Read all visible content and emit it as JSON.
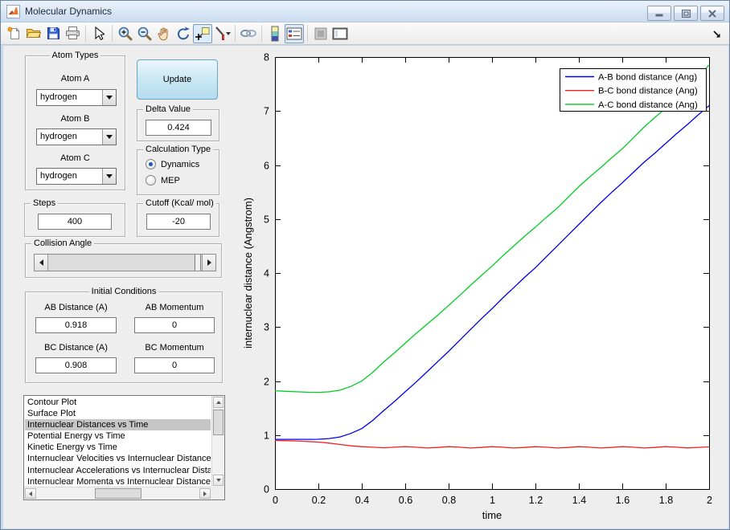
{
  "window": {
    "title": "Molecular Dynamics"
  },
  "toolbar": {
    "icons": [
      "new-figure",
      "open-file",
      "save-figure",
      "print-figure",
      "edit-plot-cursor",
      "zoom-in",
      "zoom-out",
      "pan",
      "rotate-3d",
      "data-cursor",
      "brush-data",
      "link-plots",
      "insert-colorbar",
      "insert-legend",
      "hide-plot-tools",
      "show-plot-tools-dock"
    ],
    "pressed": [
      "data-cursor",
      "insert-legend"
    ]
  },
  "controls": {
    "atom_types": {
      "title": "Atom Types",
      "atoms": [
        {
          "label": "Atom A",
          "value": "hydrogen"
        },
        {
          "label": "Atom B",
          "value": "hydrogen"
        },
        {
          "label": "Atom C",
          "value": "hydrogen"
        }
      ]
    },
    "update_button": "Update",
    "delta": {
      "title": "Delta Value",
      "value": "0.424"
    },
    "calculation_type": {
      "title": "Calculation Type",
      "options": [
        {
          "label": "Dynamics",
          "selected": true
        },
        {
          "label": "MEP",
          "selected": false
        }
      ]
    },
    "steps": {
      "title": "Steps",
      "value": "400"
    },
    "cutoff": {
      "title": "Cutoff (Kcal/ mol)",
      "value": "-20"
    },
    "collision_angle": {
      "title": "Collision Angle"
    },
    "initial_conditions": {
      "title": "Initial Conditions",
      "fields": [
        {
          "label": "AB Distance (A)",
          "value": "0.918"
        },
        {
          "label": "AB Momentum",
          "value": "0"
        },
        {
          "label": "BC Distance (A)",
          "value": "0.908"
        },
        {
          "label": "BC Momentum",
          "value": "0"
        }
      ]
    },
    "plot_list": {
      "items": [
        "Contour Plot",
        "Surface Plot",
        "Internuclear Distances vs Time",
        "Potential Energy vs Time",
        "Kinetic Energy vs Time",
        "Internuclear Velocities vs Internuclear Distance",
        "Internuclear Accelerations vs Internuclear Distance",
        "Internuclear Momenta vs Internuclear Distance"
      ],
      "selected_index": 2
    }
  },
  "chart_data": {
    "type": "line",
    "title": "",
    "xlabel": "time",
    "ylabel": "internuclear distance (Angstrom)",
    "xlim": [
      0,
      2
    ],
    "ylim": [
      0,
      8
    ],
    "xticks": [
      "0",
      "0.2",
      "0.4",
      "0.6",
      "0.8",
      "1",
      "1.2",
      "1.4",
      "1.6",
      "1.8",
      "2"
    ],
    "yticks": [
      "0",
      "1",
      "2",
      "3",
      "4",
      "5",
      "6",
      "7",
      "8"
    ],
    "grid": false,
    "legend_position": "top-right",
    "x": [
      0,
      0.05,
      0.1,
      0.15,
      0.2,
      0.25,
      0.3,
      0.35,
      0.4,
      0.45,
      0.5,
      0.55,
      0.6,
      0.65,
      0.7,
      0.75,
      0.8,
      0.85,
      0.9,
      0.95,
      1,
      1.05,
      1.1,
      1.15,
      1.2,
      1.25,
      1.3,
      1.35,
      1.4,
      1.45,
      1.5,
      1.55,
      1.6,
      1.65,
      1.7,
      1.75,
      1.8,
      1.85,
      1.9,
      1.95,
      2
    ],
    "series": [
      {
        "name": "A-B bond distance (Ang)",
        "color": "#0000ee",
        "values": [
          0.92,
          0.92,
          0.92,
          0.92,
          0.922,
          0.935,
          0.965,
          1.03,
          1.12,
          1.27,
          1.45,
          1.62,
          1.8,
          1.98,
          2.17,
          2.36,
          2.55,
          2.75,
          2.95,
          3.15,
          3.34,
          3.54,
          3.73,
          3.92,
          4.1,
          4.3,
          4.5,
          4.7,
          4.9,
          5.1,
          5.3,
          5.49,
          5.67,
          5.86,
          6.05,
          6.22,
          6.4,
          6.58,
          6.75,
          6.93,
          7.1
        ]
      },
      {
        "name": "B-C bond distance (Ang)",
        "color": "#ee2222",
        "values": [
          0.9,
          0.895,
          0.89,
          0.88,
          0.87,
          0.85,
          0.825,
          0.8,
          0.785,
          0.775,
          0.765,
          0.775,
          0.785,
          0.775,
          0.76,
          0.77,
          0.785,
          0.775,
          0.76,
          0.77,
          0.785,
          0.775,
          0.76,
          0.77,
          0.785,
          0.775,
          0.76,
          0.77,
          0.785,
          0.775,
          0.76,
          0.77,
          0.785,
          0.775,
          0.76,
          0.77,
          0.785,
          0.775,
          0.762,
          0.772,
          0.78
        ]
      },
      {
        "name": "A-C bond distance (Ang)",
        "color": "#00cc22",
        "values": [
          1.82,
          1.81,
          1.8,
          1.793,
          1.79,
          1.8,
          1.83,
          1.9,
          2,
          2.16,
          2.35,
          2.52,
          2.7,
          2.88,
          3.05,
          3.22,
          3.4,
          3.58,
          3.77,
          3.95,
          4.13,
          4.32,
          4.5,
          4.68,
          4.85,
          5.03,
          5.2,
          5.4,
          5.6,
          5.78,
          5.95,
          6.13,
          6.3,
          6.5,
          6.7,
          6.88,
          7.05,
          7.25,
          7.45,
          7.65,
          7.85
        ]
      }
    ]
  }
}
